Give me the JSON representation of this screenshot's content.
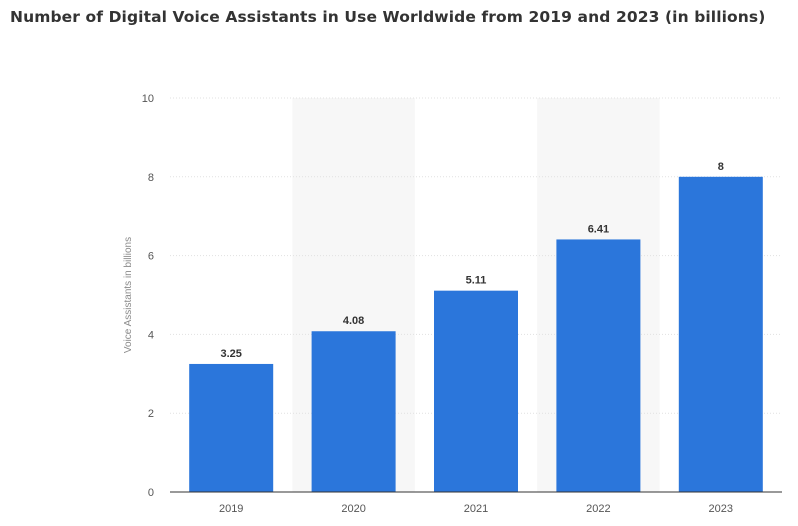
{
  "chart_data": {
    "type": "bar",
    "title": "Number of Digital Voice Assistants in Use Worldwide from 2019 and 2023 (in billions)",
    "xlabel": "",
    "ylabel": "Voice Assistants in billions",
    "categories": [
      "2019",
      "2020",
      "2021",
      "2022",
      "2023"
    ],
    "values": [
      3.25,
      4.08,
      5.11,
      6.41,
      8
    ],
    "value_labels": [
      "3.25",
      "4.08",
      "5.11",
      "6.41",
      "8"
    ],
    "ylim": [
      0,
      10
    ],
    "yticks": [
      0,
      2,
      4,
      6,
      8,
      10
    ],
    "ytick_labels": [
      "0",
      "2",
      "4",
      "6",
      "8",
      "10"
    ],
    "grid": true,
    "shaded_bands": [
      "2020",
      "2022"
    ],
    "colors": {
      "bar": "#2b76db",
      "band": "#f7f7f7",
      "grid": "#e1e1e1",
      "axis": "#333333"
    }
  }
}
